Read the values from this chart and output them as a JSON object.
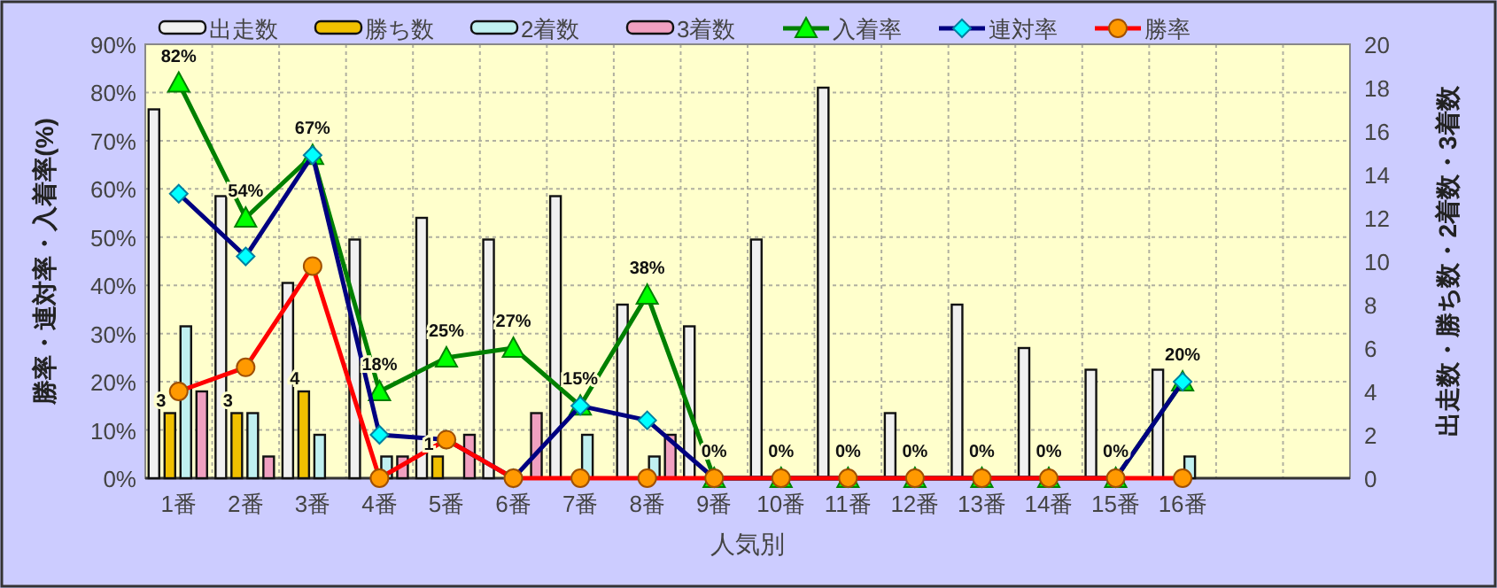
{
  "chart_data": {
    "type": "bar",
    "xlabel": "人気別",
    "ylabel": "勝率・連対率・入着率(%)",
    "y2label": "出走数・勝ち数・2着数・3着数",
    "grid": true,
    "legend": "top",
    "categories": [
      "1番",
      "2番",
      "3番",
      "4番",
      "5番",
      "6番",
      "7番",
      "8番",
      "9番",
      "10番",
      "11番",
      "12番",
      "13番",
      "14番",
      "15番",
      "16番",
      null,
      null
    ],
    "ylim": [
      0,
      90
    ],
    "yticks": [
      {
        "value": 0,
        "label": "0%"
      },
      {
        "value": 10,
        "label": "10%"
      },
      {
        "value": 20,
        "label": "20%"
      },
      {
        "value": 30,
        "label": "30%"
      },
      {
        "value": 40,
        "label": "40%"
      },
      {
        "value": 50,
        "label": "50%"
      },
      {
        "value": 60,
        "label": "60%"
      },
      {
        "value": 70,
        "label": "70%"
      },
      {
        "value": 80,
        "label": "80%"
      },
      {
        "value": 90,
        "label": "90%"
      }
    ],
    "y2lim": [
      0,
      20
    ],
    "y2ticks": [
      0,
      2,
      4,
      6,
      8,
      10,
      12,
      14,
      16,
      18,
      20
    ],
    "series": [
      {
        "name": "出走数",
        "axis": "y2",
        "color": "#f0f0f0",
        "values": [
          17,
          13,
          9,
          11,
          12,
          11,
          13,
          8,
          7,
          11,
          18,
          3,
          8,
          6,
          5,
          5,
          null,
          null
        ]
      },
      {
        "name": "勝ち数",
        "axis": "y2",
        "color": "#f0c000",
        "values": [
          3,
          3,
          4,
          0,
          1,
          0,
          0,
          0,
          0,
          0,
          0,
          0,
          0,
          0,
          0,
          0,
          null,
          null
        ],
        "value_labels": [
          "3",
          "3",
          "4",
          null,
          "1",
          null,
          null,
          null,
          null,
          null,
          null,
          null,
          null,
          null,
          null,
          null,
          null,
          null
        ]
      },
      {
        "name": "2着数",
        "axis": "y2",
        "color": "#c0f0f0",
        "values": [
          7,
          3,
          2,
          1,
          0,
          0,
          2,
          1,
          0,
          0,
          0,
          0,
          0,
          0,
          0,
          1,
          null,
          null
        ]
      },
      {
        "name": "3着数",
        "axis": "y2",
        "color": "#f0a0c0",
        "values": [
          4,
          1,
          0,
          1,
          2,
          3,
          0,
          2,
          0,
          0,
          0,
          0,
          0,
          0,
          0,
          0,
          null,
          null
        ]
      },
      {
        "name": "入着率",
        "type": "line",
        "color": "#008000",
        "marker": "triangle",
        "values": [
          82,
          54,
          67,
          18,
          25,
          27,
          15,
          38,
          0,
          0,
          0,
          0,
          0,
          0,
          0,
          20,
          null,
          null
        ],
        "value_labels": [
          "82%",
          "54%",
          "67%",
          "18%",
          "25%",
          "27%",
          "15%",
          "38%",
          "0%",
          "0%",
          "0%",
          "0%",
          "0%",
          "0%",
          "0%",
          "20%",
          null,
          null
        ]
      },
      {
        "name": "連対率",
        "type": "line",
        "color": "#000080",
        "marker": "diamond",
        "values": [
          59,
          46,
          67,
          9,
          8,
          0,
          15,
          12,
          0,
          0,
          0,
          0,
          0,
          0,
          0,
          20,
          null,
          null
        ]
      },
      {
        "name": "勝率",
        "type": "line",
        "color": "#ff0000",
        "marker": "circle",
        "values": [
          18,
          23,
          44,
          0,
          8,
          0,
          0,
          0,
          0,
          0,
          0,
          0,
          0,
          0,
          0,
          0,
          null,
          null
        ]
      }
    ]
  }
}
